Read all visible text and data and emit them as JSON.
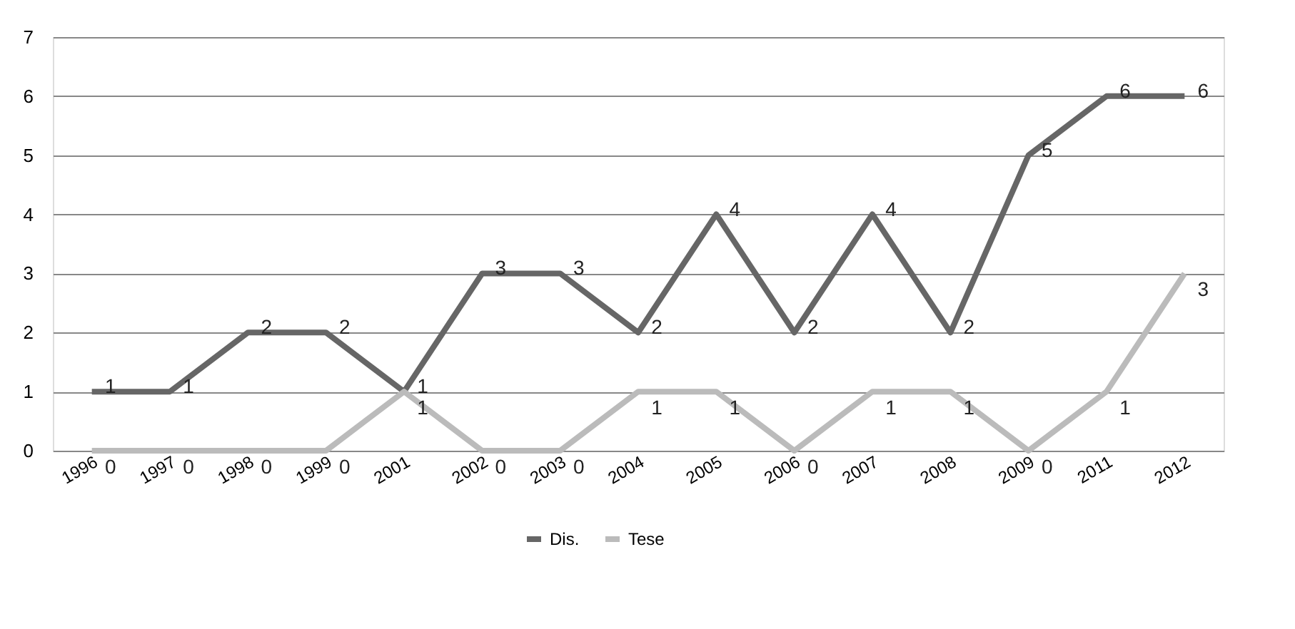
{
  "chart_data": {
    "type": "line",
    "categories": [
      "1996",
      "1997",
      "1998",
      "1999",
      "2001",
      "2002",
      "2003",
      "2004",
      "2005",
      "2006",
      "2007",
      "2008",
      "2009",
      "2011",
      "2012"
    ],
    "series": [
      {
        "name": "Dis.",
        "color": "#666666",
        "values": [
          1,
          1,
          2,
          2,
          1,
          3,
          3,
          2,
          4,
          2,
          4,
          2,
          5,
          6,
          6
        ]
      },
      {
        "name": "Tese",
        "color": "#bbbbbb",
        "values": [
          0,
          0,
          0,
          0,
          1,
          0,
          0,
          1,
          1,
          0,
          1,
          1,
          0,
          1,
          3
        ]
      }
    ],
    "ylim": [
      0,
      7
    ],
    "yticks": [
      0,
      1,
      2,
      3,
      4,
      5,
      6,
      7
    ],
    "grid": "y",
    "legend": "bottom",
    "data_labels": true,
    "marker": "none",
    "line_style": "solid"
  }
}
